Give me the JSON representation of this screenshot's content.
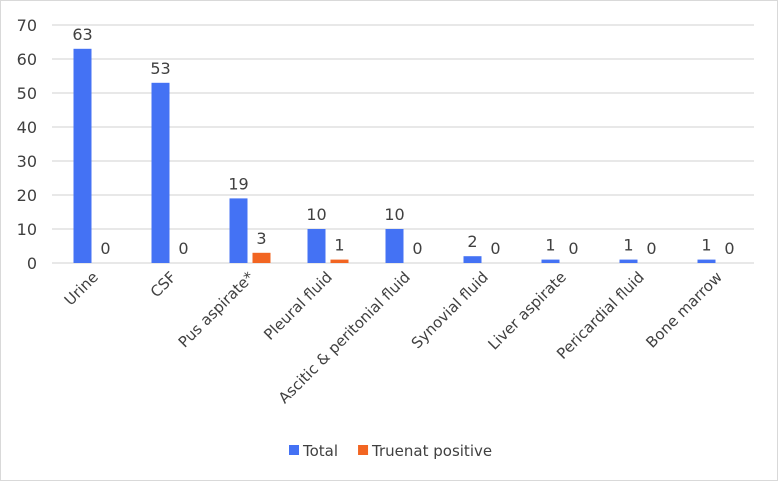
{
  "chart_data": {
    "type": "bar",
    "title": "",
    "xlabel": "",
    "ylabel": "",
    "ylim": [
      0,
      70
    ],
    "yticks": [
      0,
      10,
      20,
      30,
      40,
      50,
      60,
      70
    ],
    "grid": true,
    "legend_position": "bottom",
    "categories": [
      "Urine",
      "CSF",
      "Pus aspirate*",
      "Pleural fluid",
      "Ascitic & peritonial fluid",
      "Synovial fluid",
      "Liver aspirate",
      "Pericardial fluid",
      "Bone marrow"
    ],
    "series": [
      {
        "name": "Total",
        "color": "#4472f4",
        "values": [
          63,
          53,
          19,
          10,
          10,
          2,
          1,
          1,
          1
        ]
      },
      {
        "name": "Truenat positive",
        "color": "#f26522",
        "values": [
          0,
          0,
          3,
          1,
          0,
          0,
          0,
          0,
          0
        ]
      }
    ]
  }
}
